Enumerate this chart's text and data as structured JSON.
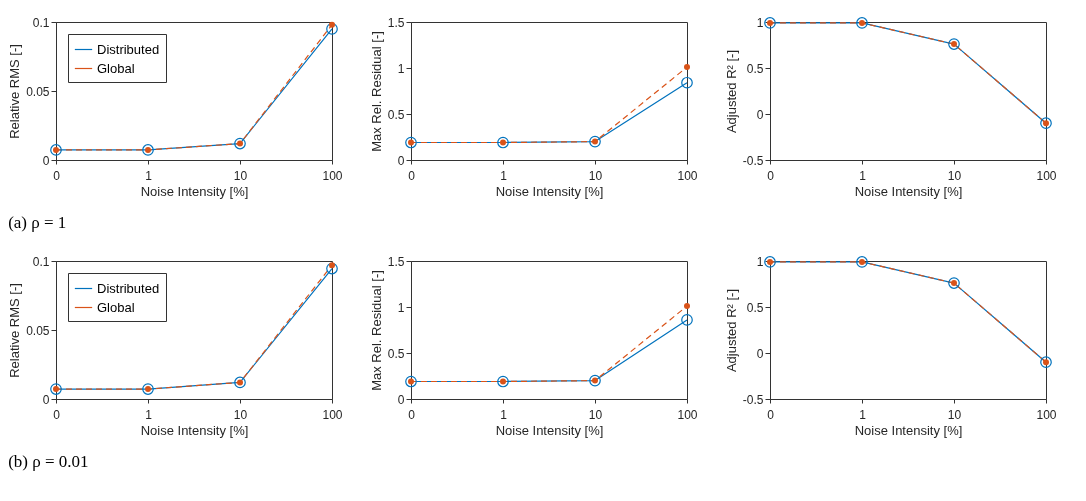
{
  "chart_data": [
    {
      "type": "line",
      "categories": [
        "0",
        "1",
        "10",
        "100"
      ],
      "xlabel": "Noise Intensity [%]",
      "ylabel": "Relative RMS [-]",
      "ylim": [
        0,
        0.1
      ],
      "yticks": [
        0,
        0.05,
        0.1
      ],
      "legend": "top left",
      "annotations": [
        "(a) ρ = 1"
      ],
      "series": [
        {
          "name": "Distributed",
          "color": "#0072bd",
          "marker": "circle",
          "line_style": "solid",
          "values": [
            0.0073,
            0.0073,
            0.0119,
            0.095
          ]
        },
        {
          "name": "Global",
          "color": "#d95319",
          "marker": "circle",
          "line_style": "dashed",
          "values": [
            0.0073,
            0.0073,
            0.0119,
            0.098
          ]
        }
      ]
    },
    {
      "type": "line",
      "categories": [
        "0",
        "1",
        "10",
        "100"
      ],
      "xlabel": "Noise Intensity [%]",
      "ylabel": "Max Rel. Residual [-]",
      "ylim": [
        0,
        1.5
      ],
      "yticks": [
        0,
        0.5,
        1,
        1.5
      ],
      "series": [
        {
          "color": "#0072bd",
          "marker": "circle",
          "line_style": "solid",
          "values": [
            0.19,
            0.19,
            0.2,
            0.84
          ]
        },
        {
          "color": "#d95319",
          "marker": "circle",
          "line_style": "dashed",
          "values": [
            0.19,
            0.19,
            0.2,
            1.01
          ]
        }
      ]
    },
    {
      "type": "line",
      "categories": [
        "0",
        "1",
        "10",
        "100"
      ],
      "xlabel": "Noise Intensity [%]",
      "ylabel": "Adjusted R² [-]",
      "ylim": [
        -0.5,
        1
      ],
      "yticks": [
        -0.5,
        0,
        0.5,
        1
      ],
      "series": [
        {
          "color": "#0072bd",
          "marker": "circle",
          "line_style": "solid",
          "values": [
            0.99,
            0.99,
            0.76,
            -0.1
          ]
        },
        {
          "color": "#d95319",
          "marker": "circle",
          "line_style": "dashed",
          "values": [
            0.99,
            0.99,
            0.76,
            -0.1
          ]
        }
      ]
    },
    {
      "type": "line",
      "categories": [
        "0",
        "1",
        "10",
        "100"
      ],
      "xlabel": "Noise Intensity [%]",
      "ylabel": "Relative RMS [-]",
      "ylim": [
        0,
        0.1
      ],
      "yticks": [
        0,
        0.05,
        0.1
      ],
      "legend": "top left",
      "annotations": [
        "(b) ρ = 0.01"
      ],
      "series": [
        {
          "name": "Distributed",
          "color": "#0072bd",
          "marker": "circle",
          "line_style": "solid",
          "values": [
            0.0072,
            0.0072,
            0.012,
            0.0945
          ]
        },
        {
          "name": "Global",
          "color": "#d95319",
          "marker": "circle",
          "line_style": "dashed",
          "values": [
            0.0072,
            0.0072,
            0.012,
            0.097
          ]
        }
      ]
    },
    {
      "type": "line",
      "categories": [
        "0",
        "1",
        "10",
        "100"
      ],
      "xlabel": "Noise Intensity [%]",
      "ylabel": "Max Rel. Residual [-]",
      "ylim": [
        0,
        1.5
      ],
      "yticks": [
        0,
        0.5,
        1,
        1.5
      ],
      "series": [
        {
          "color": "#0072bd",
          "marker": "circle",
          "line_style": "solid",
          "values": [
            0.19,
            0.19,
            0.2,
            0.86
          ]
        },
        {
          "color": "#d95319",
          "marker": "circle",
          "line_style": "dashed",
          "values": [
            0.19,
            0.19,
            0.2,
            1.01
          ]
        }
      ]
    },
    {
      "type": "line",
      "categories": [
        "0",
        "1",
        "10",
        "100"
      ],
      "xlabel": "Noise Intensity [%]",
      "ylabel": "Adjusted R² [-]",
      "ylim": [
        -0.5,
        1
      ],
      "yticks": [
        -0.5,
        0,
        0.5,
        1
      ],
      "series": [
        {
          "color": "#0072bd",
          "marker": "circle",
          "line_style": "solid",
          "values": [
            0.99,
            0.99,
            0.76,
            -0.1
          ]
        },
        {
          "color": "#d95319",
          "marker": "circle",
          "line_style": "dashed",
          "values": [
            0.99,
            0.99,
            0.76,
            -0.1
          ]
        }
      ]
    }
  ]
}
